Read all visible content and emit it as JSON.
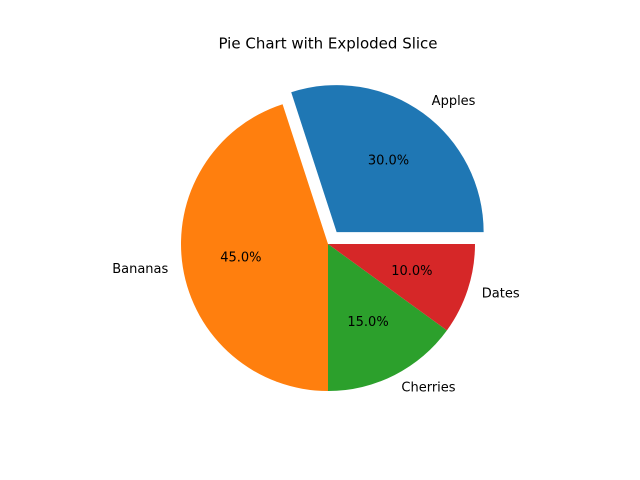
{
  "chart_data": {
    "type": "pie",
    "title": "Pie Chart with Exploded Slice",
    "categories": [
      "Apples",
      "Bananas",
      "Cherries",
      "Dates"
    ],
    "values": [
      30,
      45,
      15,
      10
    ],
    "value_labels": [
      "30.0%",
      "45.0%",
      "15.0%",
      "10.0%"
    ],
    "colors": [
      "#1f77b4",
      "#ff7f0e",
      "#2ca02c",
      "#d62728"
    ],
    "explode": [
      0.1,
      0,
      0,
      0
    ]
  }
}
